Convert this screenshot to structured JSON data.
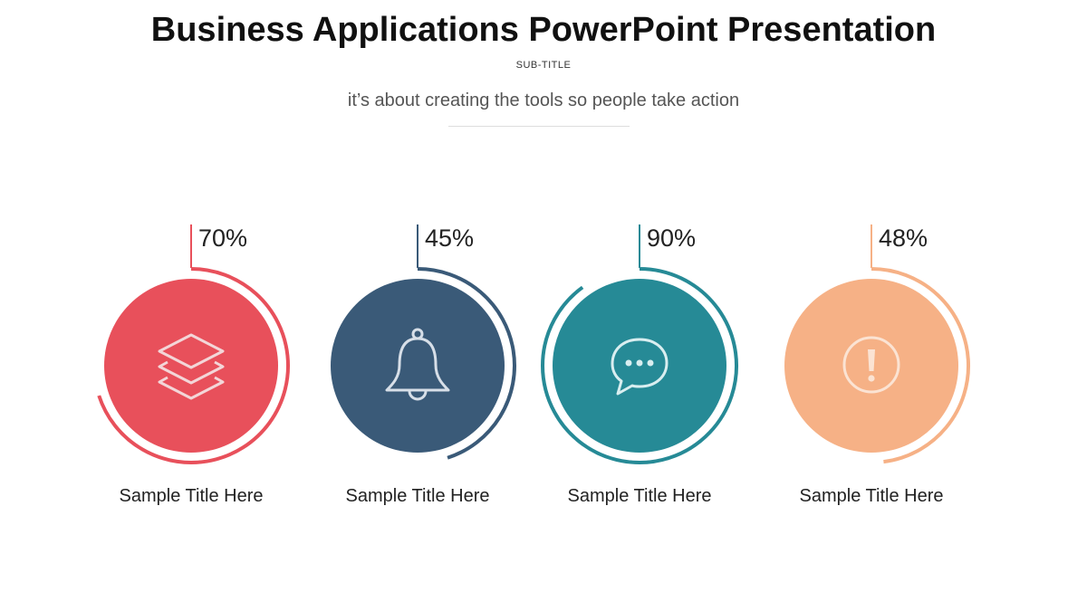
{
  "header": {
    "title": "Business Applications PowerPoint Presentation",
    "subtitle": "SUB-TITLE",
    "tagline": "it’s about creating the tools so people take action"
  },
  "items": [
    {
      "percent_label": "70%",
      "percent": 70,
      "label": "Sample Title Here",
      "color": "#E8505B",
      "icon": "layers-icon"
    },
    {
      "percent_label": "45%",
      "percent": 45,
      "label": "Sample Title Here",
      "color": "#3A5A78",
      "icon": "bell-icon"
    },
    {
      "percent_label": "90%",
      "percent": 90,
      "label": "Sample Title Here",
      "color": "#268A96",
      "icon": "chat-bubble-icon"
    },
    {
      "percent_label": "48%",
      "percent": 48,
      "label": "Sample Title Here",
      "color": "#F6B186",
      "icon": "alert-icon"
    }
  ]
}
